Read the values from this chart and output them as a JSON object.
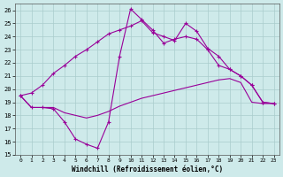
{
  "xlabel": "Windchill (Refroidissement éolien,°C)",
  "background_color": "#ceeaea",
  "grid_color": "#aacccc",
  "line_color": "#990099",
  "xlim": [
    -0.5,
    23.5
  ],
  "ylim": [
    15,
    26.5
  ],
  "yticks": [
    15,
    16,
    17,
    18,
    19,
    20,
    21,
    22,
    23,
    24,
    25,
    26
  ],
  "xticks": [
    0,
    1,
    2,
    3,
    4,
    5,
    6,
    7,
    8,
    9,
    10,
    11,
    12,
    13,
    14,
    15,
    16,
    17,
    18,
    19,
    20,
    21,
    22,
    23
  ],
  "line_spike_x": [
    0,
    1,
    2,
    3,
    4,
    5,
    6,
    7,
    8,
    9,
    10,
    11,
    12,
    13,
    14,
    15,
    16,
    17,
    18,
    19,
    20,
    21,
    22,
    23
  ],
  "line_spike_y": [
    19.5,
    18.6,
    18.6,
    18.5,
    17.5,
    16.2,
    15.8,
    15.5,
    17.5,
    22.5,
    26.1,
    25.3,
    24.5,
    23.5,
    23.8,
    24.0,
    23.8,
    23.0,
    21.8,
    21.5,
    21.0,
    20.3,
    19.0,
    18.9
  ],
  "line_upper_x": [
    0,
    1,
    2,
    3,
    4,
    5,
    6,
    7,
    8,
    9,
    10,
    11,
    12,
    13,
    14,
    15,
    16,
    17,
    18,
    19,
    20,
    21,
    22,
    23
  ],
  "line_upper_y": [
    19.5,
    19.7,
    20.3,
    21.2,
    21.8,
    22.5,
    23.0,
    23.6,
    24.2,
    24.5,
    24.8,
    25.2,
    24.3,
    24.0,
    23.7,
    25.0,
    24.4,
    23.1,
    22.5,
    21.5,
    21.0,
    20.3,
    19.0,
    18.9
  ],
  "line_lower_x": [
    0,
    1,
    2,
    3,
    4,
    5,
    6,
    7,
    8,
    9,
    10,
    11,
    12,
    13,
    14,
    15,
    16,
    17,
    18,
    19,
    20,
    21,
    22,
    23
  ],
  "line_lower_y": [
    19.5,
    18.6,
    18.6,
    18.6,
    18.2,
    18.0,
    17.8,
    18.0,
    18.3,
    18.7,
    19.0,
    19.3,
    19.5,
    19.7,
    19.9,
    20.1,
    20.3,
    20.5,
    20.7,
    20.8,
    20.5,
    19.0,
    18.9,
    18.9
  ]
}
